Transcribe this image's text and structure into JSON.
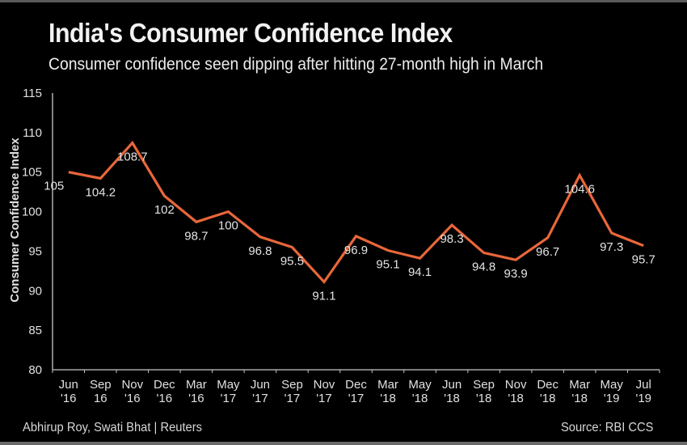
{
  "header": {
    "title": "India's Consumer Confidence Index",
    "subtitle": "Consumer confidence seen dipping after hitting  27-month high  in March"
  },
  "footer": {
    "credit": "Abhirup Roy, Swati Bhat | Reuters",
    "source": "Source: RBI CCS"
  },
  "colors": {
    "background": "#000000",
    "line": "#e8673a",
    "axis": "#c8c8c8",
    "text": "#e6e6e6"
  },
  "chart_data": {
    "type": "line",
    "title": "India's Consumer Confidence Index",
    "subtitle": "Consumer confidence seen dipping after hitting  27-month high  in March",
    "xlabel": "",
    "ylabel": "Consumer Confidence Index",
    "ylim": [
      80,
      115
    ],
    "yticks": [
      80,
      85,
      90,
      95,
      100,
      105,
      110,
      115
    ],
    "grid": false,
    "legend": "none",
    "categories": [
      [
        "Jun",
        "'16"
      ],
      [
        "Sep",
        "16"
      ],
      [
        "Nov",
        "'16"
      ],
      [
        "Dec",
        "'16"
      ],
      [
        "Mar",
        "'16"
      ],
      [
        "May",
        "'17"
      ],
      [
        "Jun",
        "'17"
      ],
      [
        "Sep",
        "'17"
      ],
      [
        "Nov",
        "'17"
      ],
      [
        "Dec",
        "'17"
      ],
      [
        "Mar",
        "'18"
      ],
      [
        "May",
        "'18"
      ],
      [
        "Jun",
        "'18"
      ],
      [
        "Sep",
        "'18"
      ],
      [
        "Nov",
        "'18"
      ],
      [
        "Dec",
        "'18"
      ],
      [
        "Mar",
        "'18"
      ],
      [
        "May",
        "'19"
      ],
      [
        "Jul",
        "'19"
      ]
    ],
    "series": [
      {
        "name": "Consumer Confidence Index",
        "values": [
          105,
          104.2,
          108.7,
          102,
          98.7,
          100,
          96.8,
          95.5,
          91.1,
          96.9,
          95.1,
          94.1,
          98.3,
          94.8,
          93.9,
          96.7,
          104.6,
          97.3,
          95.7
        ],
        "labels": [
          "105",
          "104.2",
          "108.7",
          "102",
          "98.7",
          "100",
          "96.8",
          "95.5",
          "91.1",
          "96.9",
          "95.1",
          "94.1",
          "98.3",
          "94.8",
          "93.9",
          "96.7",
          "104.6",
          "97.3",
          "95.7"
        ]
      }
    ]
  }
}
